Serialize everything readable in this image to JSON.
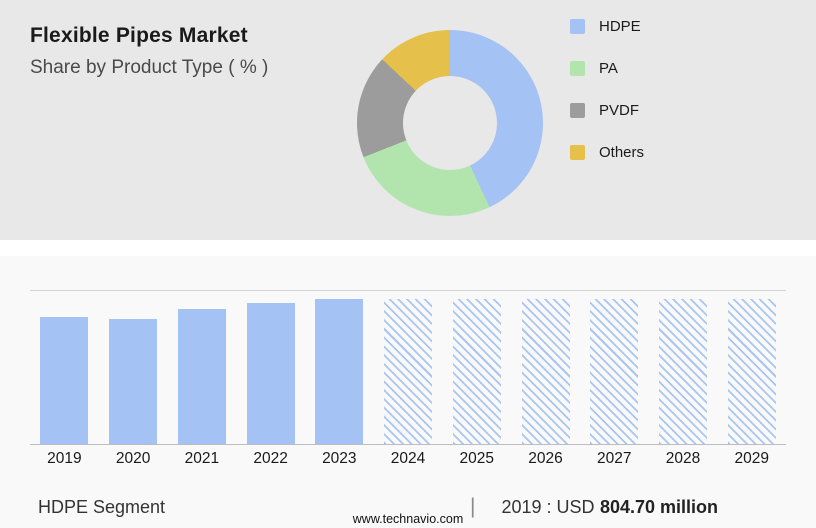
{
  "header": {
    "title": "Flexible Pipes Market",
    "subtitle": "Share by Product Type ( % )"
  },
  "chart_data": [
    {
      "type": "pie",
      "subtype": "donut",
      "title": "Share by Product Type ( % )",
      "legend_position": "right",
      "segments": [
        {
          "label": "HDPE",
          "value": 43,
          "color": "#a4c2f4"
        },
        {
          "label": "PA",
          "value": 26,
          "color": "#b2e5ae"
        },
        {
          "label": "PVDF",
          "value": 18,
          "color": "#9c9c9c"
        },
        {
          "label": "Others",
          "value": 13,
          "color": "#e5c04b"
        }
      ]
    },
    {
      "type": "bar",
      "categories": [
        "2019",
        "2020",
        "2021",
        "2022",
        "2023",
        "2024",
        "2025",
        "2026",
        "2027",
        "2028",
        "2029"
      ],
      "values_pct_of_max": [
        83,
        82,
        88,
        92,
        95,
        95,
        95,
        95,
        95,
        95,
        95
      ],
      "solid_bar_count": 5,
      "bar_color": "#a4c2f4",
      "forecast_style": "hatched",
      "xlabel": "",
      "ylabel": "",
      "grid": "top-and-baseline-only"
    }
  ],
  "footer": {
    "segment_label": "HDPE Segment",
    "separator": "|",
    "value_prefix": "2019 : USD",
    "value_bold": "804.70 million",
    "website": "www.technavio.com"
  }
}
